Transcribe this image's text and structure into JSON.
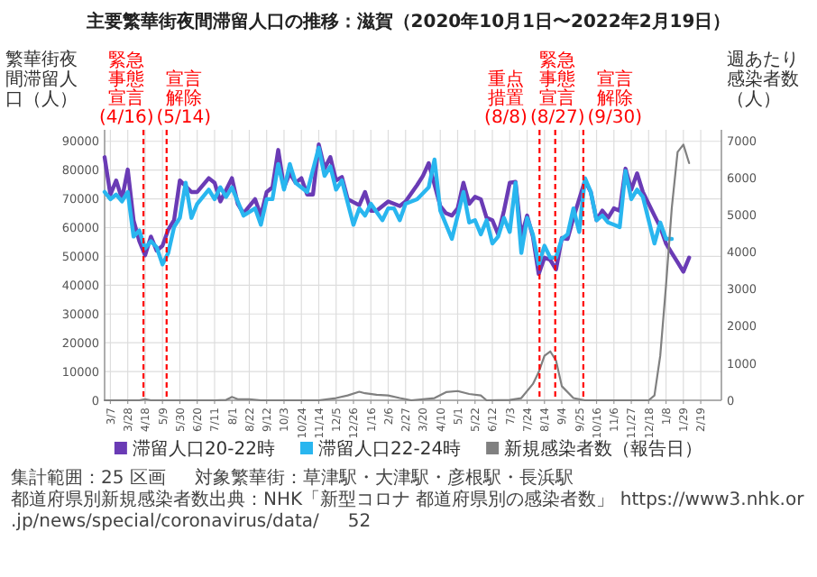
{
  "chart_data": {
    "type": "line",
    "title": "主要繁華街夜間滞留人口の推移：滋賀（2020年10月1日〜2022年2月19日）",
    "ylabel": "繁華街夜間滞留人口（人）",
    "y2label": "週あたり感染者数（人）",
    "xlim": [
      "2020-02-29",
      "2022-03-16"
    ],
    "ylim": [
      0,
      94000
    ],
    "y2lim": [
      0,
      7300
    ],
    "xticks": [
      {
        "value": "2020-03-07",
        "label": "3/7"
      },
      {
        "value": "2020-03-28",
        "label": "3/28"
      },
      {
        "value": "2020-04-18",
        "label": "4/18"
      },
      {
        "value": "2020-05-09",
        "label": "5/9"
      },
      {
        "value": "2020-05-30",
        "label": "5/30"
      },
      {
        "value": "2020-06-20",
        "label": "6/20"
      },
      {
        "value": "2020-07-11",
        "label": "7/11"
      },
      {
        "value": "2020-08-01",
        "label": "8/1"
      },
      {
        "value": "2020-08-22",
        "label": "8/22"
      },
      {
        "value": "2020-09-12",
        "label": "9/12"
      },
      {
        "value": "2020-10-03",
        "label": "10/3"
      },
      {
        "value": "2020-10-24",
        "label": "10/24"
      },
      {
        "value": "2020-11-14",
        "label": "11/14"
      },
      {
        "value": "2020-12-05",
        "label": "12/5"
      },
      {
        "value": "2020-12-26",
        "label": "12/26"
      },
      {
        "value": "2021-01-16",
        "label": "1/16"
      },
      {
        "value": "2021-02-06",
        "label": "2/6"
      },
      {
        "value": "2021-02-27",
        "label": "2/27"
      },
      {
        "value": "2021-03-20",
        "label": "3/20"
      },
      {
        "value": "2021-04-10",
        "label": "4/10"
      },
      {
        "value": "2021-05-01",
        "label": "5/1"
      },
      {
        "value": "2021-05-22",
        "label": "5/22"
      },
      {
        "value": "2021-06-12",
        "label": "6/12"
      },
      {
        "value": "2021-07-03",
        "label": "7/3"
      },
      {
        "value": "2021-07-24",
        "label": "7/24"
      },
      {
        "value": "2021-08-14",
        "label": "8/14"
      },
      {
        "value": "2021-09-04",
        "label": "9/4"
      },
      {
        "value": "2021-09-25",
        "label": "9/25"
      },
      {
        "value": "2021-10-16",
        "label": "10/16"
      },
      {
        "value": "2021-11-06",
        "label": "11/6"
      },
      {
        "value": "2021-11-27",
        "label": "11/27"
      },
      {
        "value": "2021-12-18",
        "label": "12/18"
      },
      {
        "value": "2022-01-08",
        "label": "1/8"
      },
      {
        "value": "2022-01-29",
        "label": "1/29"
      },
      {
        "value": "2022-02-19",
        "label": "2/19"
      }
    ],
    "yticks": [
      0,
      10000,
      20000,
      30000,
      40000,
      50000,
      60000,
      70000,
      80000,
      90000
    ],
    "y2ticks": [
      0,
      1000,
      2000,
      3000,
      4000,
      5000,
      6000,
      7000
    ],
    "grid": true,
    "legend": "bottom",
    "series": [
      {
        "name": "滞留人口20-22時",
        "color": "#6a3bb5",
        "x": [
          "2020-02-29",
          "2020-03-07",
          "2020-03-14",
          "2020-03-21",
          "2020-03-28",
          "2020-04-04",
          "2020-04-11",
          "2020-04-18",
          "2020-04-25",
          "2020-05-02",
          "2020-05-09",
          "2020-05-16",
          "2020-05-23",
          "2020-05-30",
          "2020-06-13",
          "2020-06-20",
          "2020-07-04",
          "2020-07-11",
          "2020-07-18",
          "2020-08-01",
          "2020-08-08",
          "2020-08-15",
          "2020-08-29",
          "2020-09-05",
          "2020-09-12",
          "2020-09-19",
          "2020-09-26",
          "2020-10-03",
          "2020-10-10",
          "2020-10-17",
          "2020-10-24",
          "2020-10-31",
          "2020-11-07",
          "2020-11-14",
          "2020-11-21",
          "2020-11-28",
          "2020-12-05",
          "2020-12-12",
          "2020-12-19",
          "2021-01-02",
          "2021-01-09",
          "2021-01-16",
          "2021-01-23",
          "2021-02-06",
          "2021-02-13",
          "2021-02-20",
          "2021-02-27",
          "2021-03-13",
          "2021-03-20",
          "2021-03-27",
          "2021-04-10",
          "2021-04-17",
          "2021-04-24",
          "2021-05-01",
          "2021-05-08",
          "2021-05-15",
          "2021-05-22",
          "2021-05-29",
          "2021-06-05",
          "2021-06-12",
          "2021-06-19",
          "2021-06-26",
          "2021-07-03",
          "2021-07-10",
          "2021-07-17",
          "2021-07-24",
          "2021-07-31",
          "2021-08-07",
          "2021-08-14",
          "2021-08-21",
          "2021-08-28",
          "2021-09-04",
          "2021-09-11",
          "2021-09-18",
          "2021-10-02",
          "2021-10-09",
          "2021-10-16",
          "2021-10-23",
          "2021-10-30",
          "2021-11-06",
          "2021-11-13",
          "2021-11-20",
          "2021-11-27",
          "2021-12-04",
          "2021-12-11",
          "2021-12-25",
          "2022-01-01",
          "2022-01-08",
          "2022-01-15",
          "2022-01-22",
          "2022-01-29",
          "2022-02-05"
        ],
        "values": [
          84500,
          71500,
          76400,
          70000,
          80200,
          62600,
          55300,
          50400,
          56900,
          52000,
          53700,
          59300,
          62600,
          76400,
          72400,
          72400,
          77200,
          75600,
          69100,
          77200,
          68300,
          65000,
          69900,
          64200,
          72400,
          74000,
          87000,
          74000,
          78900,
          75600,
          77200,
          71500,
          71500,
          88900,
          80500,
          84500,
          76400,
          77600,
          69900,
          67800,
          72400,
          65900,
          65900,
          69100,
          68300,
          67500,
          69100,
          74800,
          78000,
          82400,
          67500,
          65000,
          64200,
          66700,
          75600,
          68300,
          70700,
          69900,
          63400,
          62600,
          57700,
          65900,
          75600,
          75900,
          56900,
          64200,
          56900,
          43900,
          49600,
          48800,
          45500,
          56400,
          56100,
          63400,
          76400,
          72400,
          62600,
          65900,
          63400,
          66700,
          65900,
          80500,
          73200,
          78900,
          72400,
          64200,
          60200,
          54500,
          51200,
          48000,
          44700,
          49600
        ]
      },
      {
        "name": "滞留人口22-24時",
        "color": "#29b6ef",
        "x": [
          "2020-02-29",
          "2020-03-07",
          "2020-03-14",
          "2020-03-21",
          "2020-03-28",
          "2020-04-04",
          "2020-04-11",
          "2020-04-18",
          "2020-04-25",
          "2020-05-02",
          "2020-05-09",
          "2020-05-16",
          "2020-05-23",
          "2020-05-30",
          "2020-06-06",
          "2020-06-13",
          "2020-06-20",
          "2020-07-04",
          "2020-07-11",
          "2020-07-18",
          "2020-07-25",
          "2020-08-01",
          "2020-08-08",
          "2020-08-15",
          "2020-08-29",
          "2020-09-05",
          "2020-09-12",
          "2020-09-19",
          "2020-09-26",
          "2020-10-03",
          "2020-10-10",
          "2020-10-17",
          "2020-10-31",
          "2020-11-14",
          "2020-11-21",
          "2020-11-28",
          "2020-12-05",
          "2020-12-12",
          "2020-12-26",
          "2021-01-02",
          "2021-01-09",
          "2021-01-16",
          "2021-01-30",
          "2021-02-06",
          "2021-02-13",
          "2021-02-20",
          "2021-02-27",
          "2021-03-13",
          "2021-03-27",
          "2021-04-03",
          "2021-04-10",
          "2021-04-24",
          "2021-05-01",
          "2021-05-08",
          "2021-05-15",
          "2021-05-22",
          "2021-05-29",
          "2021-06-05",
          "2021-06-12",
          "2021-06-19",
          "2021-06-26",
          "2021-07-03",
          "2021-07-10",
          "2021-07-17",
          "2021-07-24",
          "2021-07-31",
          "2021-08-07",
          "2021-08-14",
          "2021-08-21",
          "2021-08-28",
          "2021-09-04",
          "2021-09-11",
          "2021-09-18",
          "2021-09-25",
          "2021-10-02",
          "2021-10-09",
          "2021-10-16",
          "2021-10-23",
          "2021-10-30",
          "2021-11-06",
          "2021-11-13",
          "2021-11-20",
          "2021-11-27",
          "2021-12-04",
          "2021-12-11",
          "2021-12-25",
          "2022-01-01",
          "2022-01-08",
          "2022-01-15"
        ],
        "values": [
          72400,
          69900,
          71500,
          69100,
          72400,
          56900,
          59000,
          52800,
          55300,
          53200,
          47200,
          51200,
          60200,
          63400,
          75600,
          63400,
          68300,
          73200,
          69900,
          74000,
          70700,
          74000,
          69100,
          64200,
          66700,
          61000,
          69900,
          69900,
          82100,
          73200,
          82100,
          75600,
          72400,
          87800,
          78000,
          81300,
          73200,
          76400,
          61000,
          66700,
          64200,
          68300,
          62600,
          66700,
          66700,
          62600,
          68300,
          69900,
          74000,
          83700,
          65900,
          56100,
          64200,
          72400,
          61800,
          62600,
          57700,
          62600,
          54500,
          56900,
          63400,
          58500,
          75600,
          51200,
          63400,
          57700,
          47200,
          53700,
          49600,
          49600,
          56100,
          57700,
          66700,
          58500,
          77200,
          72400,
          62600,
          64200,
          61800,
          61000,
          60200,
          79700,
          69900,
          73200,
          70700,
          54500,
          61800,
          56100,
          56100
        ]
      },
      {
        "name": "新規感染者数（報告日）",
        "color": "#808080",
        "axis": "y2",
        "x": [
          "2020-02-29",
          "2020-04-11",
          "2020-04-18",
          "2020-04-25",
          "2020-07-11",
          "2020-07-25",
          "2020-08-01",
          "2020-08-08",
          "2020-08-22",
          "2020-09-05",
          "2020-11-14",
          "2020-12-05",
          "2020-12-19",
          "2021-01-02",
          "2021-01-09",
          "2021-01-23",
          "2021-02-06",
          "2021-02-20",
          "2021-03-06",
          "2021-04-03",
          "2021-04-17",
          "2021-05-01",
          "2021-05-15",
          "2021-05-29",
          "2021-06-05",
          "2021-07-03",
          "2021-07-17",
          "2021-07-31",
          "2021-08-07",
          "2021-08-14",
          "2021-08-21",
          "2021-08-28",
          "2021-09-04",
          "2021-09-18",
          "2021-10-02",
          "2021-12-18",
          "2021-12-25",
          "2022-01-01",
          "2022-01-08",
          "2022-01-15",
          "2022-01-22",
          "2022-01-29",
          "2022-02-05"
        ],
        "values": [
          0,
          0,
          30,
          0,
          0,
          10,
          90,
          30,
          30,
          0,
          0,
          60,
          130,
          230,
          190,
          150,
          130,
          60,
          0,
          60,
          220,
          250,
          170,
          130,
          0,
          10,
          60,
          440,
          760,
          1200,
          1320,
          1070,
          380,
          60,
          0,
          0,
          130,
          1200,
          3100,
          5200,
          6700,
          6900,
          6400
        ]
      }
    ],
    "ref_lines": [
      {
        "axis": "x",
        "value": "2020-04-16",
        "label": "緊急事態宣言(4/16)",
        "color": "#ff0000",
        "line_style": "dashed"
      },
      {
        "axis": "x",
        "value": "2020-05-14",
        "label": "宣言解除(5/14)",
        "color": "#ff0000",
        "line_style": "dashed"
      },
      {
        "axis": "x",
        "value": "2021-08-08",
        "label": "重点措置(8/8)",
        "color": "#ff0000",
        "line_style": "dashed"
      },
      {
        "axis": "x",
        "value": "2021-08-27",
        "label": "緊急事態宣言(8/27)",
        "color": "#ff0000",
        "line_style": "dashed"
      },
      {
        "axis": "x",
        "value": "2021-09-30",
        "label": "宣言解除(9/30)",
        "color": "#ff0000",
        "line_style": "dashed"
      }
    ],
    "annotations": [
      "集計範囲：25 区画",
      "対象繁華街：草津駅・大津駅・彦根駅・長浜駅",
      "都道府県別新規感染者数出典：NHK「新型コロナ 都道府県別の感染者数」 https://www3.nhk.or.jp/news/special/coronavirus/data/",
      "52"
    ]
  }
}
